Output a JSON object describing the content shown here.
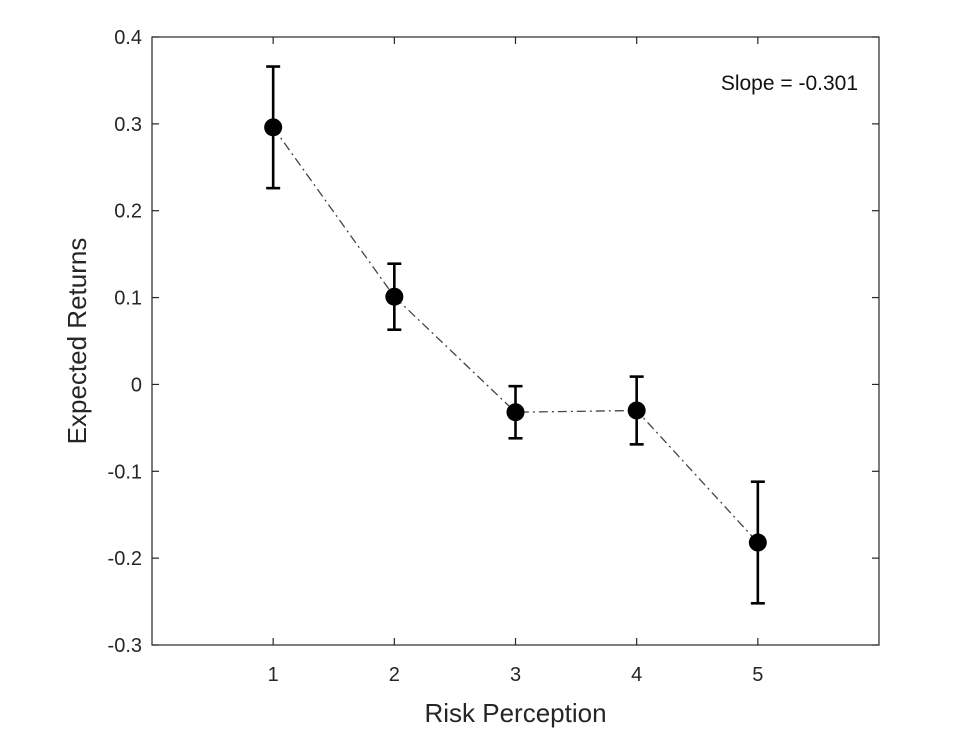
{
  "chart_data": {
    "type": "line",
    "title": "",
    "xlabel": "Risk Perception",
    "ylabel": "Expected Returns",
    "xlim": [
      0,
      6
    ],
    "ylim": [
      -0.3,
      0.4
    ],
    "xticks": [
      1,
      2,
      3,
      4,
      5
    ],
    "xtick_labels": [
      "1",
      "2",
      "3",
      "4",
      "5"
    ],
    "yticks": [
      -0.3,
      -0.2,
      -0.1,
      0,
      0.1,
      0.2,
      0.3,
      0.4
    ],
    "ytick_labels": [
      "-0.3",
      "-0.2",
      "-0.1",
      "0",
      "0.1",
      "0.2",
      "0.3",
      "0.4"
    ],
    "grid": false,
    "series": [
      {
        "name": "Expected Returns",
        "x": [
          1,
          2,
          3,
          4,
          5
        ],
        "values": [
          0.296,
          0.101,
          -0.032,
          -0.03,
          -0.182
        ],
        "err_low": [
          0.226,
          0.063,
          -0.062,
          -0.069,
          -0.252
        ],
        "err_high": [
          0.366,
          0.139,
          -0.002,
          0.009,
          -0.112
        ],
        "color": "#000000",
        "line_style": "dash-dot"
      }
    ],
    "annotations": [
      {
        "text": "Slope = -0.301",
        "position": "top-right"
      }
    ]
  }
}
